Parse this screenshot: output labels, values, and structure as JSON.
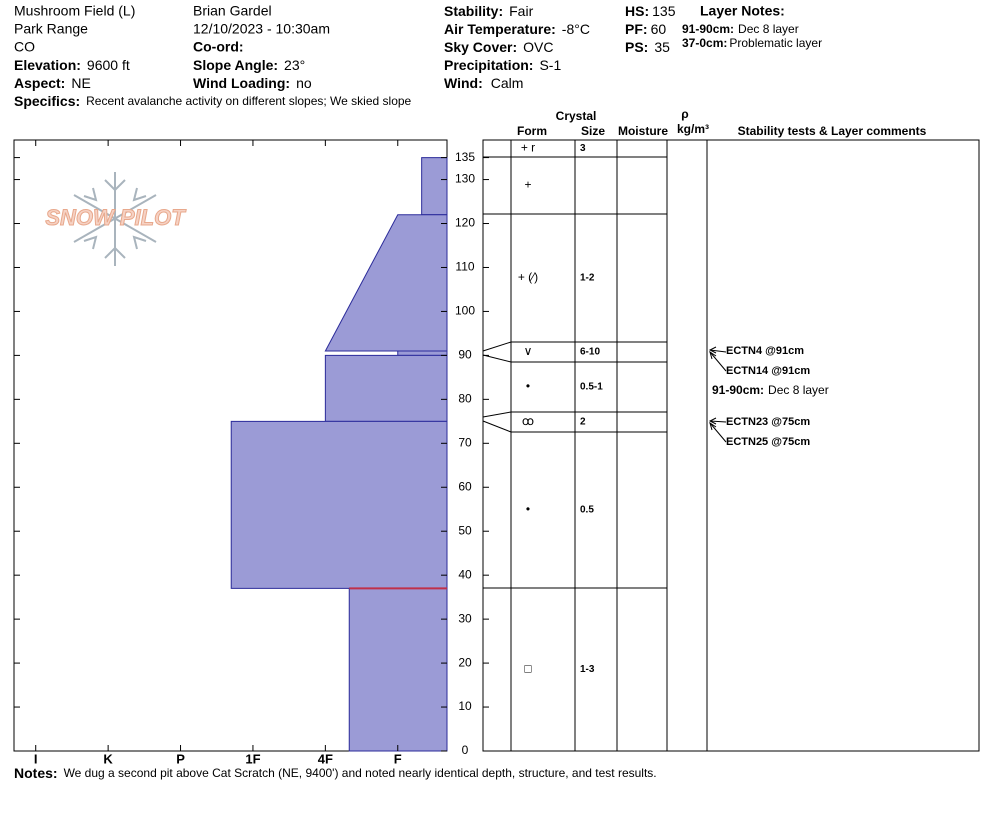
{
  "header": {
    "location": [
      "Mushroom Field (L)",
      "Park Range",
      "CO"
    ],
    "elevation": {
      "label": "Elevation:",
      "value": "9600 ft"
    },
    "aspect": {
      "label": "Aspect:",
      "value": "NE"
    },
    "observer": "Brian Gardel",
    "datetime": "12/10/2023 - 10:30am",
    "coord": {
      "label": "Co-ord:"
    },
    "slope": {
      "label": "Slope Angle:",
      "value": "23°"
    },
    "wind_loading": {
      "label": "Wind Loading:",
      "value": "no"
    },
    "stability": {
      "label": "Stability:",
      "value": "Fair"
    },
    "air_temp": {
      "label": "Air Temperature:",
      "value": "-8°C"
    },
    "sky": {
      "label": "Sky Cover:",
      "value": "OVC"
    },
    "precip": {
      "label": "Precipitation:",
      "value": "S-1"
    },
    "wind": {
      "label": "Wind:",
      "value": "Calm"
    },
    "hs": {
      "label": "HS:",
      "value": 135
    },
    "pf": {
      "label": "PF:",
      "value": 60
    },
    "ps": {
      "label": "PS:",
      "value": 35
    },
    "layer_notes": {
      "title": "Layer Notes:",
      "items": [
        {
          "range": "91-90cm:",
          "text": "Dec 8 layer"
        },
        {
          "range": "37-0cm:",
          "text": "Problematic layer"
        }
      ]
    },
    "specifics": {
      "label": "Specifics:",
      "text": "Recent avalanche activity on different slopes;  We skied slope"
    }
  },
  "logo": "SNOW PILOT",
  "chart_data": {
    "type": "snow-profile",
    "ylim": [
      0,
      139
    ],
    "yticks": [
      0,
      10,
      20,
      30,
      40,
      50,
      60,
      70,
      80,
      90,
      100,
      110,
      120,
      130,
      135
    ],
    "xlim": [
      6.3,
      0.32
    ],
    "xticks": [
      {
        "value": 6,
        "label": "I"
      },
      {
        "value": 5,
        "label": "K"
      },
      {
        "value": 4,
        "label": "P"
      },
      {
        "value": 3,
        "label": "1F"
      },
      {
        "value": 2,
        "label": "4F"
      },
      {
        "value": 1,
        "label": "F"
      }
    ],
    "color": "#9b9bd6",
    "edge_color": "#2b2b9a",
    "layers": [
      {
        "top": 135,
        "bottom": 122,
        "hardness": [
          0.67,
          0.67
        ]
      },
      {
        "top": 122,
        "bottom": 91,
        "hardness": [
          1,
          2
        ]
      },
      {
        "top": 91,
        "bottom": 90,
        "hardness": [
          1,
          1
        ]
      },
      {
        "top": 90,
        "bottom": 75,
        "hardness": [
          2,
          2
        ]
      },
      {
        "top": 75,
        "bottom": 37,
        "hardness": [
          3.3,
          3.3
        ]
      },
      {
        "top": 37,
        "bottom": 0,
        "hardness": [
          1.67,
          1.67
        ]
      }
    ],
    "concern_depth": 37,
    "concern_color": "#c0304a"
  },
  "table": {
    "header": {
      "crystal": "Crystal",
      "form": "Form",
      "size": "Size",
      "moisture": "Moisture",
      "rho": "ρ",
      "density_unit": "kg/m³",
      "comments": "Stability tests & Layer comments"
    },
    "rows": [
      {
        "form": "+ r",
        "size": "3"
      },
      {
        "form": "+"
      },
      {
        "form": "+ (⁄)",
        "size": "1-2"
      },
      {
        "form": "∨",
        "size": "6-10"
      },
      {
        "form": "•",
        "size": "0.5-1"
      },
      {
        "form": "ꝏ",
        "size": "2"
      },
      {
        "form": "•",
        "size": "0.5"
      },
      {
        "form": "□",
        "size": "1-3"
      }
    ],
    "tests": [
      "ECTN4 @91cm",
      "ECTN14 @91cm",
      "ECTN23 @75cm",
      "ECTN25 @75cm"
    ],
    "comment": {
      "range": "91-90cm:",
      "text": "Dec 8 layer"
    }
  },
  "notes": {
    "label": "Notes:",
    "text": "We dug a second pit above Cat Scratch (NE, 9400') and noted nearly identical depth, structure, and test results."
  }
}
